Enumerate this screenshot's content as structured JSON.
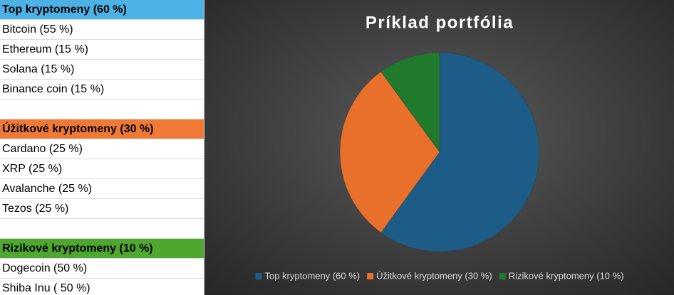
{
  "sheet": {
    "groups": [
      {
        "title": "Top kryptomeny (60 %)",
        "color": "#4cb2e6",
        "items": [
          "Bitcoin (55 %)",
          "Ethereum (15 %)",
          "Solana (15 %)",
          "Binance coin (15 %)"
        ]
      },
      {
        "title": "Úžitkové kryptomeny (30 %)",
        "color": "#f07a35",
        "items": [
          "Cardano (25 %)",
          "XRP (25 %)",
          "Avalanche (25 %)",
          "Tezos (25 %)"
        ]
      },
      {
        "title": "Rizikové kryptomeny (10 %)",
        "color": "#4ea72e",
        "items": [
          "Dogecoin (50 %)",
          "Shiba Inu ( 50 %)"
        ]
      }
    ]
  },
  "chart_data": {
    "type": "pie",
    "title": "Príklad portfólia",
    "categories": [
      "Top kryptomeny (60 %)",
      "Úžitkové kryptomeny (30 %)",
      "Rizikové kryptomeny (10 %)"
    ],
    "values": [
      60,
      30,
      10
    ],
    "colors": [
      "#1d5c87",
      "#e8702a",
      "#1f7a2c"
    ],
    "legend": "bottom"
  }
}
